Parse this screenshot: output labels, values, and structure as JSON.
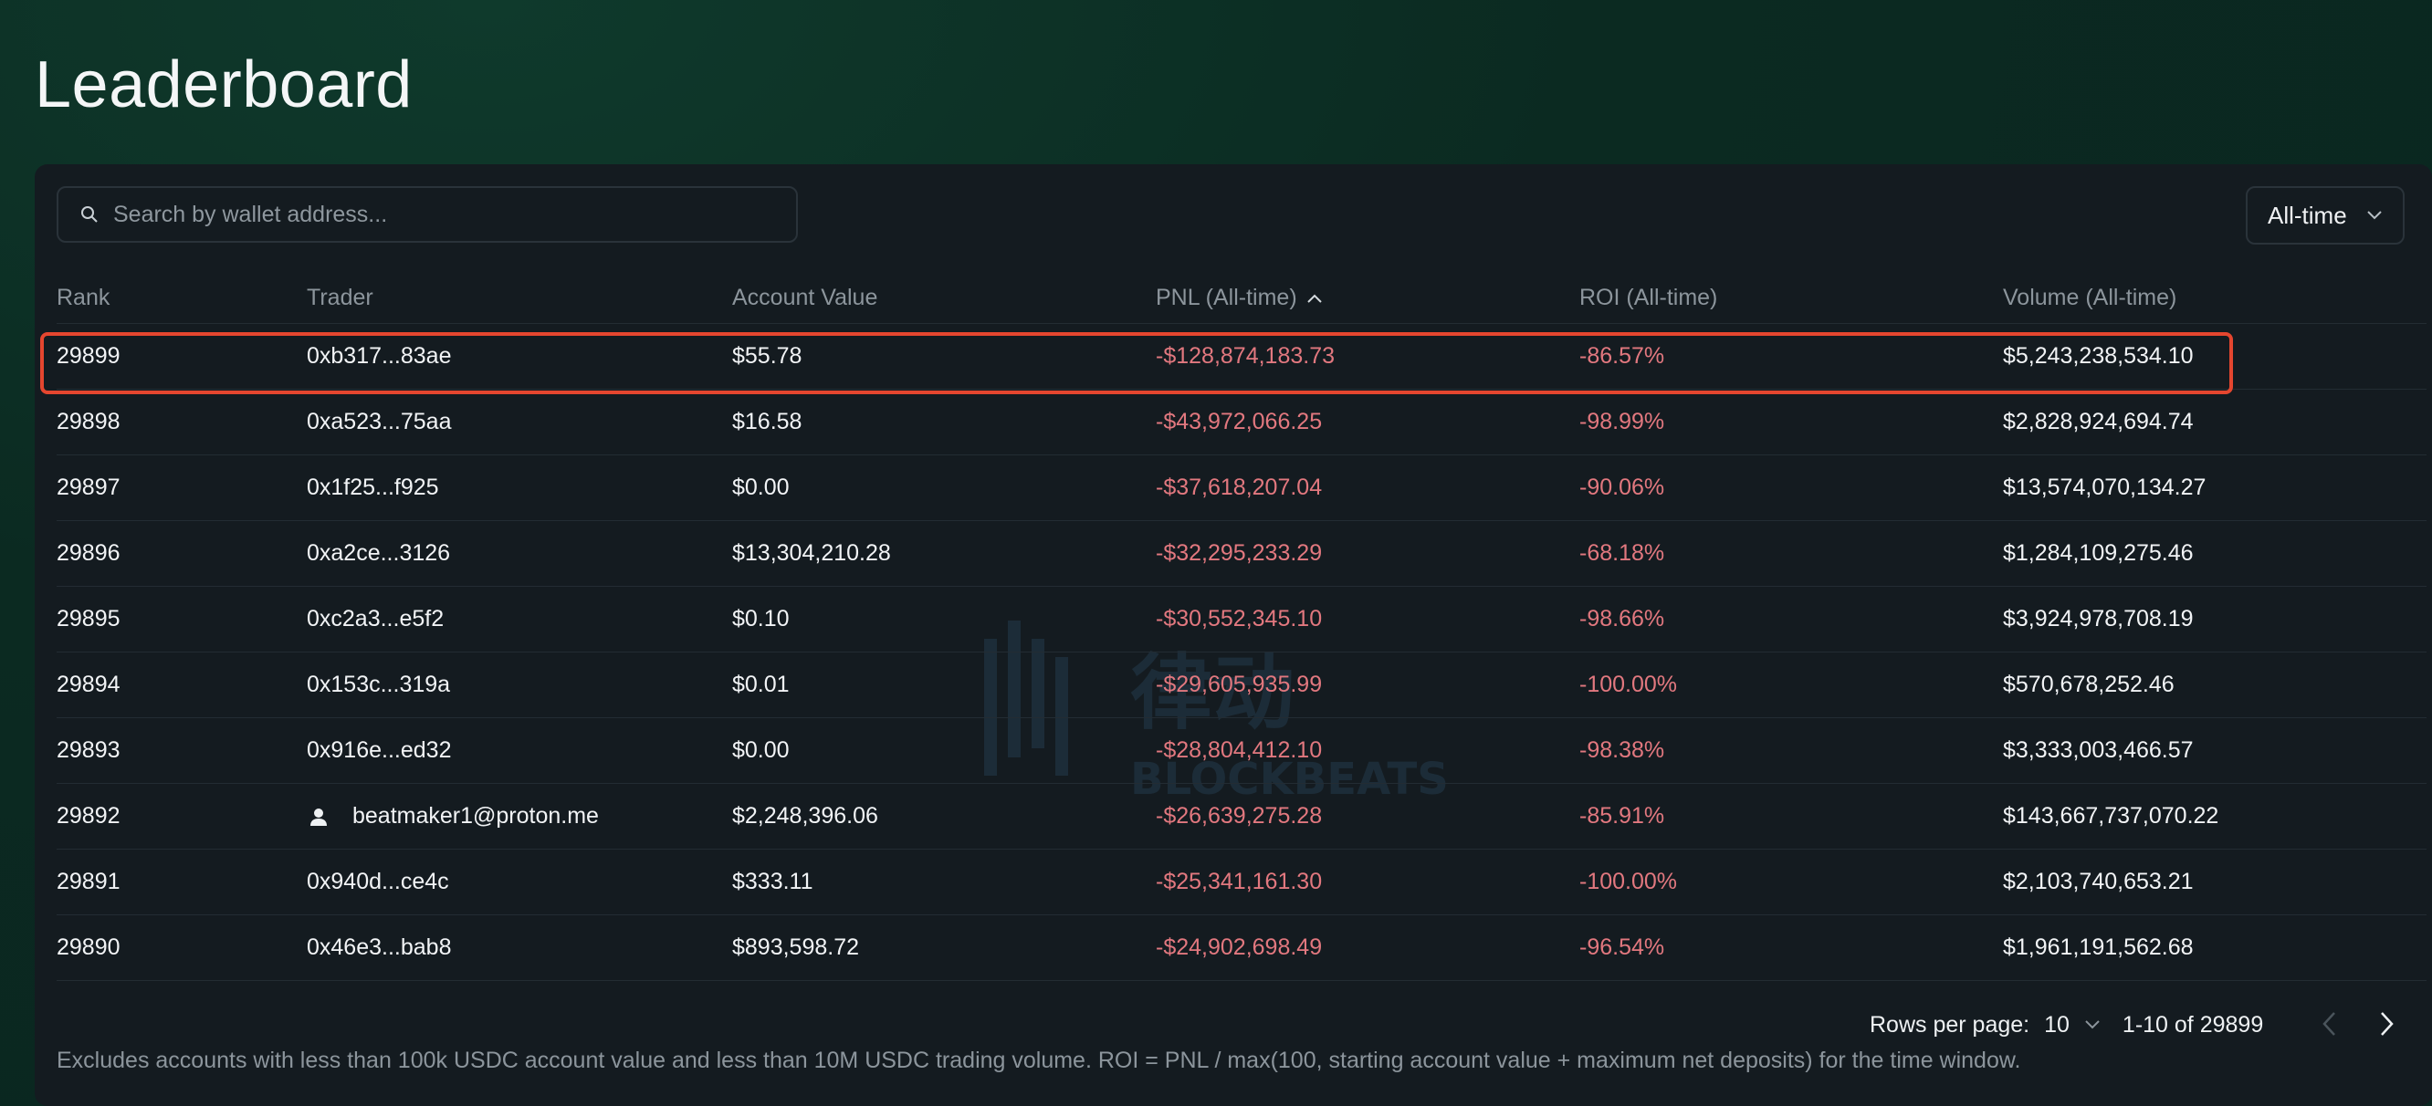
{
  "page": {
    "title": "Leaderboard"
  },
  "search": {
    "placeholder": "Search by wallet address..."
  },
  "filter": {
    "selected": "All-time"
  },
  "table": {
    "columns": [
      "Rank",
      "Trader",
      "Account Value",
      "PNL (All-time)",
      "ROI (All-time)",
      "Volume (All-time)"
    ],
    "sorted_column": "PNL (All-time)",
    "sort_direction": "ascending",
    "rows": [
      {
        "rank": "29899",
        "trader": "0xb317...83ae",
        "account_value": "$55.78",
        "pnl": "-$128,874,183.73",
        "roi": "-86.57%",
        "volume": "$5,243,238,534.10",
        "highlighted": true
      },
      {
        "rank": "29898",
        "trader": "0xa523...75aa",
        "account_value": "$16.58",
        "pnl": "-$43,972,066.25",
        "roi": "-98.99%",
        "volume": "$2,828,924,694.74"
      },
      {
        "rank": "29897",
        "trader": "0x1f25...f925",
        "account_value": "$0.00",
        "pnl": "-$37,618,207.04",
        "roi": "-90.06%",
        "volume": "$13,574,070,134.27"
      },
      {
        "rank": "29896",
        "trader": "0xa2ce...3126",
        "account_value": "$13,304,210.28",
        "pnl": "-$32,295,233.29",
        "roi": "-68.18%",
        "volume": "$1,284,109,275.46"
      },
      {
        "rank": "29895",
        "trader": "0xc2a3...e5f2",
        "account_value": "$0.10",
        "pnl": "-$30,552,345.10",
        "roi": "-98.66%",
        "volume": "$3,924,978,708.19"
      },
      {
        "rank": "29894",
        "trader": "0x153c...319a",
        "account_value": "$0.01",
        "pnl": "-$29,605,935.99",
        "roi": "-100.00%",
        "volume": "$570,678,252.46"
      },
      {
        "rank": "29893",
        "trader": "0x916e...ed32",
        "account_value": "$0.00",
        "pnl": "-$28,804,412.10",
        "roi": "-98.38%",
        "volume": "$3,333,003,466.57"
      },
      {
        "rank": "29892",
        "trader": "beatmaker1@proton.me",
        "trader_icon": "user-icon",
        "account_value": "$2,248,396.06",
        "pnl": "-$26,639,275.28",
        "roi": "-85.91%",
        "volume": "$143,667,737,070.22"
      },
      {
        "rank": "29891",
        "trader": "0x940d...ce4c",
        "account_value": "$333.11",
        "pnl": "-$25,341,161.30",
        "roi": "-100.00%",
        "volume": "$2,103,740,653.21"
      },
      {
        "rank": "29890",
        "trader": "0x46e3...bab8",
        "account_value": "$893,598.72",
        "pnl": "-$24,902,698.49",
        "roi": "-96.54%",
        "volume": "$1,961,191,562.68"
      }
    ]
  },
  "pagination": {
    "rows_per_page_label": "Rows per page:",
    "rows_per_page": "10",
    "range": "1-10 of 29899"
  },
  "footnote": "Excludes accounts with less than 100k USDC account value and less than 10M USDC trading volume. ROI = PNL / max(100, starting account value + maximum net deposits) for the time window.",
  "colors": {
    "negative": "#e2787f",
    "highlight_border": "#e5462f",
    "panel": "#141b20",
    "background": "#0b2a21"
  }
}
